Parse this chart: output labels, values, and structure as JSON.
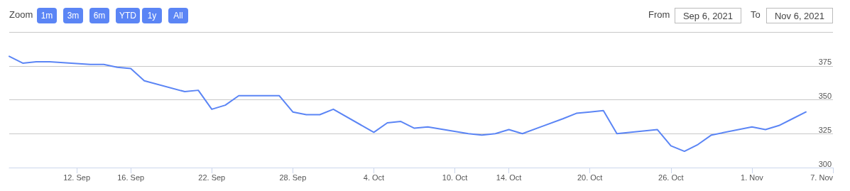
{
  "chart_data": {
    "type": "line",
    "annotations": [
      "Zoom",
      "1m",
      "3m",
      "6m",
      "YTD",
      "1y",
      "All",
      "From",
      "Sep 6, 2021",
      "To",
      "Nov 6, 2021"
    ],
    "x": [
      "2021-09-07",
      "2021-09-08",
      "2021-09-09",
      "2021-09-10",
      "2021-09-13",
      "2021-09-14",
      "2021-09-15",
      "2021-09-16",
      "2021-09-17",
      "2021-09-20",
      "2021-09-21",
      "2021-09-22",
      "2021-09-23",
      "2021-09-24",
      "2021-09-27",
      "2021-09-28",
      "2021-09-29",
      "2021-09-30",
      "2021-10-01",
      "2021-10-04",
      "2021-10-05",
      "2021-10-06",
      "2021-10-07",
      "2021-10-08",
      "2021-10-11",
      "2021-10-12",
      "2021-10-13",
      "2021-10-14",
      "2021-10-15",
      "2021-10-18",
      "2021-10-19",
      "2021-10-20",
      "2021-10-21",
      "2021-10-22",
      "2021-10-25",
      "2021-10-26",
      "2021-10-27",
      "2021-10-28",
      "2021-10-29",
      "2021-11-01",
      "2021-11-02",
      "2021-11-03",
      "2021-11-04",
      "2021-11-05"
    ],
    "series": [
      {
        "color": "#5b85f5",
        "values": [
          382,
          377,
          378,
          378,
          376,
          376,
          374,
          373,
          364,
          356,
          357,
          343,
          346,
          353,
          353,
          341,
          339,
          339,
          343,
          326,
          333,
          334,
          329,
          330,
          325,
          324,
          325,
          328,
          325,
          336,
          340,
          341,
          342,
          325,
          328,
          316,
          312,
          317,
          324,
          330,
          328,
          331,
          336,
          341
        ]
      }
    ],
    "xlim": [
      "2021-09-07",
      "2021-11-07"
    ],
    "xticks": [
      {
        "value": "2021-09-12",
        "label": "12. Sep"
      },
      {
        "value": "2021-09-16",
        "label": "16. Sep"
      },
      {
        "value": "2021-09-22",
        "label": "22. Sep"
      },
      {
        "value": "2021-09-28",
        "label": "28. Sep"
      },
      {
        "value": "2021-10-04",
        "label": "4. Oct"
      },
      {
        "value": "2021-10-10",
        "label": "10. Oct"
      },
      {
        "value": "2021-10-14",
        "label": "14. Oct"
      },
      {
        "value": "2021-10-20",
        "label": "20. Oct"
      },
      {
        "value": "2021-10-26",
        "label": "26. Oct"
      },
      {
        "value": "2021-11-01",
        "label": "1. Nov"
      },
      {
        "value": "2021-11-07",
        "label": "7. Nov"
      }
    ],
    "ylim": [
      300,
      400
    ],
    "yticks": [
      300,
      325,
      350,
      375,
      {
        "value": 400,
        "label": null
      }
    ],
    "grid": "y",
    "marker": "none",
    "line_style": "solid"
  }
}
